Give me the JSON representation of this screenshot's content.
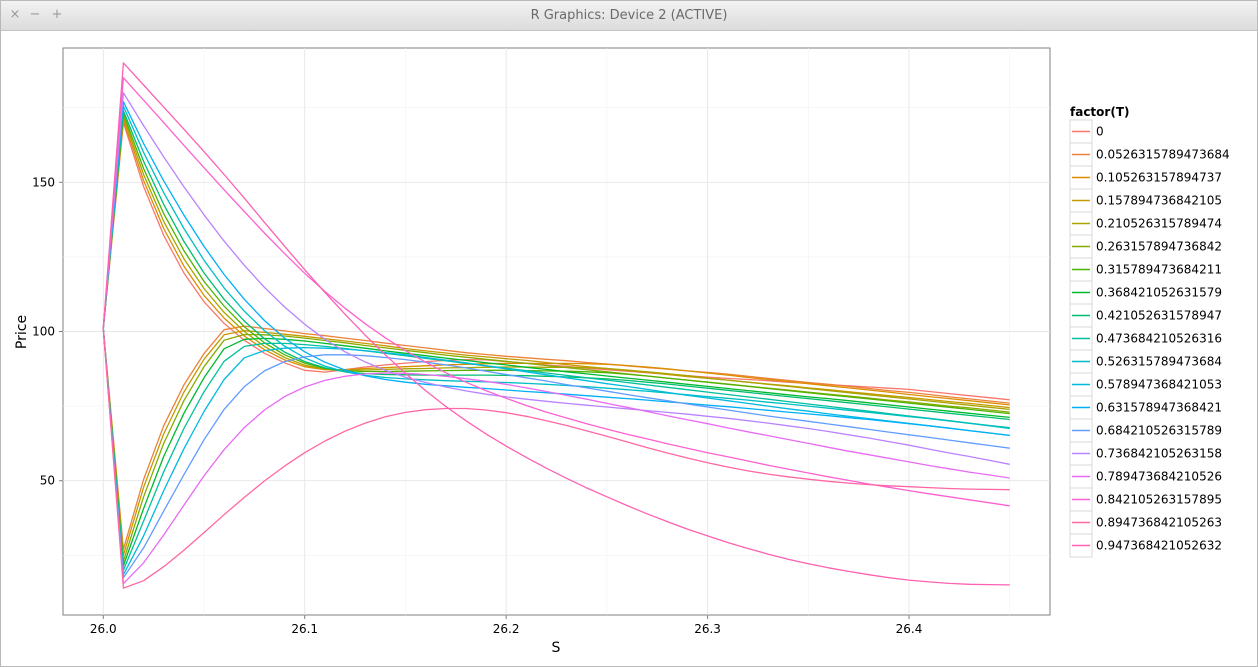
{
  "window": {
    "title": "R Graphics: Device 2 (ACTIVE)",
    "controls": {
      "close": "×",
      "minimize": "−",
      "maximize": "+"
    }
  },
  "chart_data": {
    "type": "line",
    "xlabel": "S",
    "ylabel": "Price",
    "xlim": [
      25.98,
      26.47
    ],
    "ylim": [
      5,
      195
    ],
    "x_ticks": [
      "26.0",
      "26.1",
      "26.2",
      "26.3",
      "26.4"
    ],
    "y_ticks": [
      "50",
      "100",
      "150"
    ],
    "grid": true,
    "legend_title": "factor(T)",
    "legend_position": "right",
    "x": [
      26.0,
      26.01,
      26.02,
      26.03,
      26.04,
      26.05,
      26.06,
      26.07,
      26.08,
      26.09,
      26.1,
      26.11,
      26.12,
      26.13,
      26.14,
      26.15,
      26.16,
      26.17,
      26.18,
      26.19,
      26.2,
      26.21,
      26.22,
      26.23,
      26.24,
      26.25,
      26.26,
      26.27,
      26.28,
      26.29,
      26.3,
      26.31,
      26.32,
      26.33,
      26.34,
      26.35,
      26.36,
      26.37,
      26.38,
      26.39,
      26.4,
      26.41,
      26.42,
      26.43,
      26.44,
      26.45
    ],
    "series": [
      {
        "name": "0",
        "color": "#f8766d",
        "values": [
          101.0,
          170.0,
          148.6,
          132.2,
          119.6,
          110.0,
          102.7,
          97.1,
          92.7,
          89.5,
          87.0,
          86.4,
          87.2,
          88.1,
          88.8,
          89.4,
          89.9,
          90.3,
          90.6,
          90.5,
          89.9,
          89.4,
          88.8,
          88.3,
          87.7,
          87.2,
          86.7,
          86.2,
          85.7,
          85.2,
          84.7,
          84.3,
          83.9,
          83.5,
          83.0,
          82.6,
          82.2,
          81.8,
          81.4,
          81.0,
          80.6,
          79.9,
          79.2,
          78.5,
          77.8,
          77.1
        ]
      },
      {
        "name": "0.0526315789473684",
        "color": "#ec8239",
        "values": [
          101.0,
          27.0,
          50.4,
          68.4,
          82.1,
          92.6,
          100.6,
          101.8,
          101.0,
          100.2,
          99.3,
          98.6,
          97.8,
          97.0,
          96.1,
          95.3,
          94.5,
          93.7,
          92.9,
          92.3,
          91.7,
          91.2,
          90.7,
          90.2,
          89.6,
          89.1,
          88.5,
          87.9,
          87.4,
          86.8,
          86.3,
          85.7,
          85.0,
          84.3,
          83.6,
          82.9,
          82.3,
          81.6,
          80.9,
          80.2,
          79.6,
          78.9,
          78.1,
          77.4,
          76.7,
          76.0
        ]
      },
      {
        "name": "0.105263157894737",
        "color": "#db8e00",
        "values": [
          101.0,
          171.0,
          150.6,
          134.5,
          121.9,
          112.1,
          104.5,
          98.5,
          93.9,
          90.5,
          88.2,
          87.2,
          87.2,
          87.6,
          87.9,
          88.2,
          88.5,
          88.8,
          89.0,
          89.2,
          89.3,
          89.3,
          89.3,
          89.3,
          89.2,
          89.0,
          88.6,
          88.1,
          87.5,
          86.8,
          86.1,
          85.4,
          84.6,
          83.9,
          83.2,
          82.5,
          81.8,
          81.1,
          80.4,
          79.7,
          78.9,
          78.2,
          77.5,
          76.8,
          76.1,
          75.4
        ]
      },
      {
        "name": "0.157894736842105",
        "color": "#c59900",
        "values": [
          101.0,
          25.0,
          47.8,
          65.7,
          79.7,
          90.7,
          98.9,
          100.3,
          99.7,
          99.1,
          98.4,
          97.6,
          96.8,
          96.0,
          95.2,
          94.3,
          93.5,
          92.8,
          92.1,
          91.5,
          90.9,
          90.3,
          89.6,
          88.9,
          88.2,
          87.6,
          86.9,
          86.3,
          85.6,
          84.9,
          84.3,
          83.7,
          83.0,
          82.4,
          81.8,
          81.1,
          80.5,
          79.8,
          79.2,
          78.5,
          77.9,
          77.2,
          76.5,
          75.9,
          75.2,
          74.5
        ]
      },
      {
        "name": "0.210526315789474",
        "color": "#a9a400",
        "values": [
          101.0,
          172.0,
          152.6,
          136.9,
          124.4,
          114.4,
          106.4,
          100.0,
          95.0,
          91.3,
          88.7,
          87.4,
          87.0,
          87.1,
          87.3,
          87.5,
          87.6,
          87.8,
          87.9,
          88.0,
          88.1,
          88.1,
          88.0,
          88.0,
          87.9,
          87.6,
          87.1,
          86.5,
          85.9,
          85.2,
          84.4,
          83.7,
          83.0,
          82.3,
          81.6,
          80.9,
          80.2,
          79.5,
          78.8,
          78.1,
          77.4,
          76.7,
          76.0,
          75.3,
          74.6,
          73.9
        ]
      },
      {
        "name": "0.263157894736842",
        "color": "#86ac00",
        "values": [
          101.0,
          23.0,
          44.6,
          62.5,
          76.8,
          88.2,
          97.1,
          99.0,
          98.9,
          98.5,
          97.8,
          97.0,
          96.2,
          95.3,
          94.5,
          93.7,
          92.9,
          92.1,
          91.4,
          90.7,
          90.0,
          89.3,
          88.6,
          87.9,
          87.2,
          86.5,
          85.8,
          85.1,
          84.4,
          83.7,
          83.0,
          82.4,
          81.7,
          81.0,
          80.4,
          79.7,
          79.0,
          78.4,
          77.7,
          77.0,
          76.4,
          75.7,
          75.0,
          74.4,
          73.7,
          73.0
        ]
      },
      {
        "name": "0.315789473684211",
        "color": "#50b300",
        "values": [
          101.0,
          173.0,
          154.6,
          139.5,
          127.1,
          116.8,
          108.5,
          101.6,
          96.2,
          92.2,
          89.4,
          87.6,
          86.8,
          86.6,
          86.6,
          86.7,
          86.8,
          86.9,
          87.0,
          87.0,
          87.0,
          86.9,
          86.8,
          86.7,
          86.5,
          86.2,
          85.7,
          85.1,
          84.4,
          83.7,
          83.0,
          82.3,
          81.6,
          80.9,
          80.2,
          79.5,
          78.8,
          78.1,
          77.4,
          76.7,
          76.0,
          75.3,
          74.6,
          73.9,
          73.2,
          72.5
        ]
      },
      {
        "name": "0.368421052631579",
        "color": "#00b92e",
        "values": [
          101.0,
          21.5,
          40.7,
          58.1,
          72.6,
          84.5,
          94.2,
          97.4,
          97.7,
          97.4,
          96.8,
          96.0,
          95.2,
          94.4,
          93.5,
          92.7,
          91.9,
          91.1,
          90.3,
          89.5,
          88.8,
          88.0,
          87.3,
          86.5,
          85.8,
          85.1,
          84.4,
          83.7,
          83.0,
          82.3,
          81.6,
          80.9,
          80.2,
          79.5,
          78.8,
          78.1,
          77.5,
          76.8,
          76.1,
          75.4,
          74.7,
          74.0,
          73.3,
          72.6,
          71.9,
          71.2
        ]
      },
      {
        "name": "0.421052631578947",
        "color": "#00bd6f",
        "values": [
          101.0,
          174.0,
          157.0,
          142.6,
          130.2,
          119.6,
          110.8,
          103.5,
          97.6,
          93.1,
          89.9,
          87.8,
          86.5,
          85.9,
          85.6,
          85.5,
          85.4,
          85.4,
          85.4,
          85.4,
          85.3,
          85.2,
          85.0,
          84.8,
          84.5,
          84.1,
          83.6,
          83.0,
          82.4,
          81.7,
          81.0,
          80.3,
          79.6,
          78.9,
          78.2,
          77.5,
          76.8,
          76.1,
          75.4,
          74.7,
          74.0,
          73.3,
          72.6,
          71.9,
          71.2,
          70.5
        ]
      },
      {
        "name": "0.473684210526316",
        "color": "#00c09c",
        "values": [
          101.0,
          20.0,
          36.5,
          53.0,
          67.5,
          79.8,
          90.0,
          95.0,
          96.0,
          96.0,
          95.6,
          95.0,
          94.3,
          93.5,
          92.7,
          91.9,
          91.0,
          90.2,
          89.3,
          88.5,
          87.7,
          86.9,
          86.1,
          85.3,
          84.5,
          83.7,
          82.9,
          82.1,
          81.3,
          80.5,
          79.7,
          78.9,
          78.1,
          77.3,
          76.5,
          75.7,
          74.9,
          74.1,
          73.3,
          72.5,
          71.7,
          70.9,
          70.1,
          69.3,
          68.5,
          67.8
        ]
      },
      {
        "name": "0.526315789473684",
        "color": "#00bfc4",
        "values": [
          101.0,
          175.5,
          160.0,
          146.5,
          134.5,
          123.9,
          114.6,
          106.8,
          100.3,
          95.1,
          91.2,
          88.4,
          86.5,
          85.3,
          84.6,
          84.1,
          83.8,
          83.5,
          83.3,
          83.1,
          82.9,
          82.6,
          82.3,
          81.9,
          81.5,
          81.0,
          80.5,
          80.0,
          79.4,
          78.8,
          78.2,
          77.6,
          77.0,
          76.3,
          75.7,
          75.0,
          74.3,
          73.6,
          72.9,
          72.2,
          71.5,
          70.8,
          70.0,
          69.2,
          68.4,
          67.5
        ]
      },
      {
        "name": "0.578947368421053",
        "color": "#00bae0",
        "values": [
          101.0,
          18.5,
          31.5,
          46.7,
          60.7,
          73.2,
          83.9,
          91.2,
          93.6,
          94.4,
          94.6,
          94.4,
          94.1,
          93.6,
          92.9,
          92.2,
          91.3,
          90.4,
          89.5,
          88.5,
          87.5,
          86.5,
          85.5,
          84.5,
          83.5,
          82.5,
          81.6,
          80.6,
          79.6,
          78.6,
          77.7,
          76.8,
          75.9,
          75.0,
          74.1,
          73.3,
          72.4,
          71.6,
          70.8,
          70.0,
          69.2,
          68.4,
          67.6,
          66.8,
          66.0,
          65.2
        ]
      },
      {
        "name": "0.631578947368421",
        "color": "#00b0f6",
        "values": [
          101.0,
          177.0,
          163.0,
          150.5,
          139.0,
          128.5,
          119.1,
          110.8,
          103.7,
          97.8,
          93.2,
          89.7,
          87.1,
          85.2,
          83.9,
          83.0,
          82.3,
          81.8,
          81.3,
          80.9,
          80.4,
          79.9,
          79.5,
          79.0,
          78.5,
          78.0,
          77.5,
          77.0,
          76.4,
          75.9,
          75.3,
          74.8,
          74.2,
          73.6,
          73.0,
          72.4,
          71.8,
          71.1,
          70.5,
          69.8,
          69.1,
          68.4,
          67.6,
          66.8,
          66.0,
          65.2
        ]
      },
      {
        "name": "0.684210526315789",
        "color": "#619cff",
        "values": [
          101.0,
          17.5,
          27.5,
          39.8,
          52.0,
          63.7,
          73.9,
          81.5,
          86.8,
          89.9,
          91.5,
          92.2,
          92.2,
          91.9,
          91.3,
          90.6,
          89.7,
          88.8,
          87.8,
          86.7,
          85.6,
          84.5,
          83.4,
          82.2,
          81.1,
          80.0,
          78.9,
          77.8,
          76.8,
          75.7,
          74.7,
          73.7,
          72.7,
          71.7,
          70.8,
          69.9,
          69.0,
          68.1,
          67.2,
          66.3,
          65.4,
          64.5,
          63.6,
          62.7,
          61.8,
          60.9
        ]
      },
      {
        "name": "0.736842105263158",
        "color": "#b983ff",
        "values": [
          101.0,
          180.0,
          169.0,
          158.5,
          148.5,
          139.1,
          130.3,
          122.2,
          114.8,
          108.2,
          102.4,
          97.4,
          93.2,
          89.8,
          87.0,
          84.7,
          82.9,
          81.4,
          80.1,
          79.0,
          78.1,
          77.3,
          76.6,
          75.9,
          75.3,
          74.7,
          74.1,
          73.5,
          72.9,
          72.3,
          71.6,
          70.9,
          70.1,
          69.3,
          68.4,
          67.5,
          66.5,
          65.4,
          64.3,
          63.1,
          61.9,
          60.6,
          59.3,
          58.1,
          56.8,
          55.5
        ]
      },
      {
        "name": "0.789473684210526",
        "color": "#e76bf3",
        "values": [
          101.0,
          15.5,
          22.5,
          31.8,
          41.8,
          51.6,
          60.4,
          67.8,
          73.7,
          78.2,
          81.4,
          83.6,
          85.0,
          85.8,
          86.1,
          86.0,
          85.6,
          85.0,
          84.2,
          83.3,
          82.3,
          81.1,
          79.9,
          78.6,
          77.3,
          75.9,
          74.6,
          73.2,
          71.8,
          70.4,
          69.1,
          67.7,
          66.4,
          65.1,
          63.8,
          62.5,
          61.2,
          59.9,
          58.7,
          57.5,
          56.3,
          55.1,
          54.0,
          52.9,
          51.9,
          50.9
        ]
      },
      {
        "name": "0.842105263157895",
        "color": "#fd61d1",
        "values": [
          101.0,
          185.0,
          177.5,
          170.0,
          162.4,
          154.9,
          147.5,
          140.2,
          133.0,
          126.1,
          119.5,
          113.4,
          107.8,
          102.6,
          97.9,
          93.6,
          89.7,
          86.2,
          83.0,
          80.2,
          77.6,
          75.2,
          73.0,
          71.0,
          69.1,
          67.3,
          65.6,
          64.0,
          62.4,
          60.9,
          59.4,
          58.0,
          56.6,
          55.2,
          53.9,
          52.6,
          51.3,
          50.1,
          48.9,
          47.8,
          46.7,
          45.6,
          44.6,
          43.6,
          42.6,
          41.6
        ]
      },
      {
        "name": "0.894736842105263",
        "color": "#ff67a4",
        "values": [
          101.0,
          14.0,
          16.5,
          21.2,
          26.7,
          32.6,
          38.6,
          44.4,
          49.9,
          54.9,
          59.4,
          63.3,
          66.6,
          69.3,
          71.4,
          72.9,
          73.8,
          74.2,
          74.2,
          73.7,
          72.8,
          71.6,
          70.1,
          68.5,
          66.7,
          64.9,
          63.0,
          61.1,
          59.3,
          57.6,
          56.0,
          54.6,
          53.3,
          52.2,
          51.3,
          50.5,
          49.8,
          49.2,
          48.7,
          48.3,
          48.0,
          47.7,
          47.4,
          47.2,
          47.1,
          47.0
        ]
      },
      {
        "name": "0.947368421052632",
        "color": "#fe61b2",
        "values": [
          101.0,
          190.0,
          182.6,
          175.2,
          167.8,
          160.3,
          152.6,
          144.7,
          136.6,
          128.6,
          120.7,
          113.1,
          105.8,
          98.8,
          92.2,
          86.0,
          80.2,
          74.9,
          70.1,
          65.7,
          61.6,
          57.8,
          54.2,
          50.8,
          47.6,
          44.6,
          41.7,
          38.9,
          36.3,
          33.8,
          31.5,
          29.3,
          27.3,
          25.4,
          23.7,
          22.2,
          20.8,
          19.6,
          18.5,
          17.5,
          16.7,
          16.1,
          15.6,
          15.3,
          15.2,
          15.1
        ]
      }
    ]
  }
}
